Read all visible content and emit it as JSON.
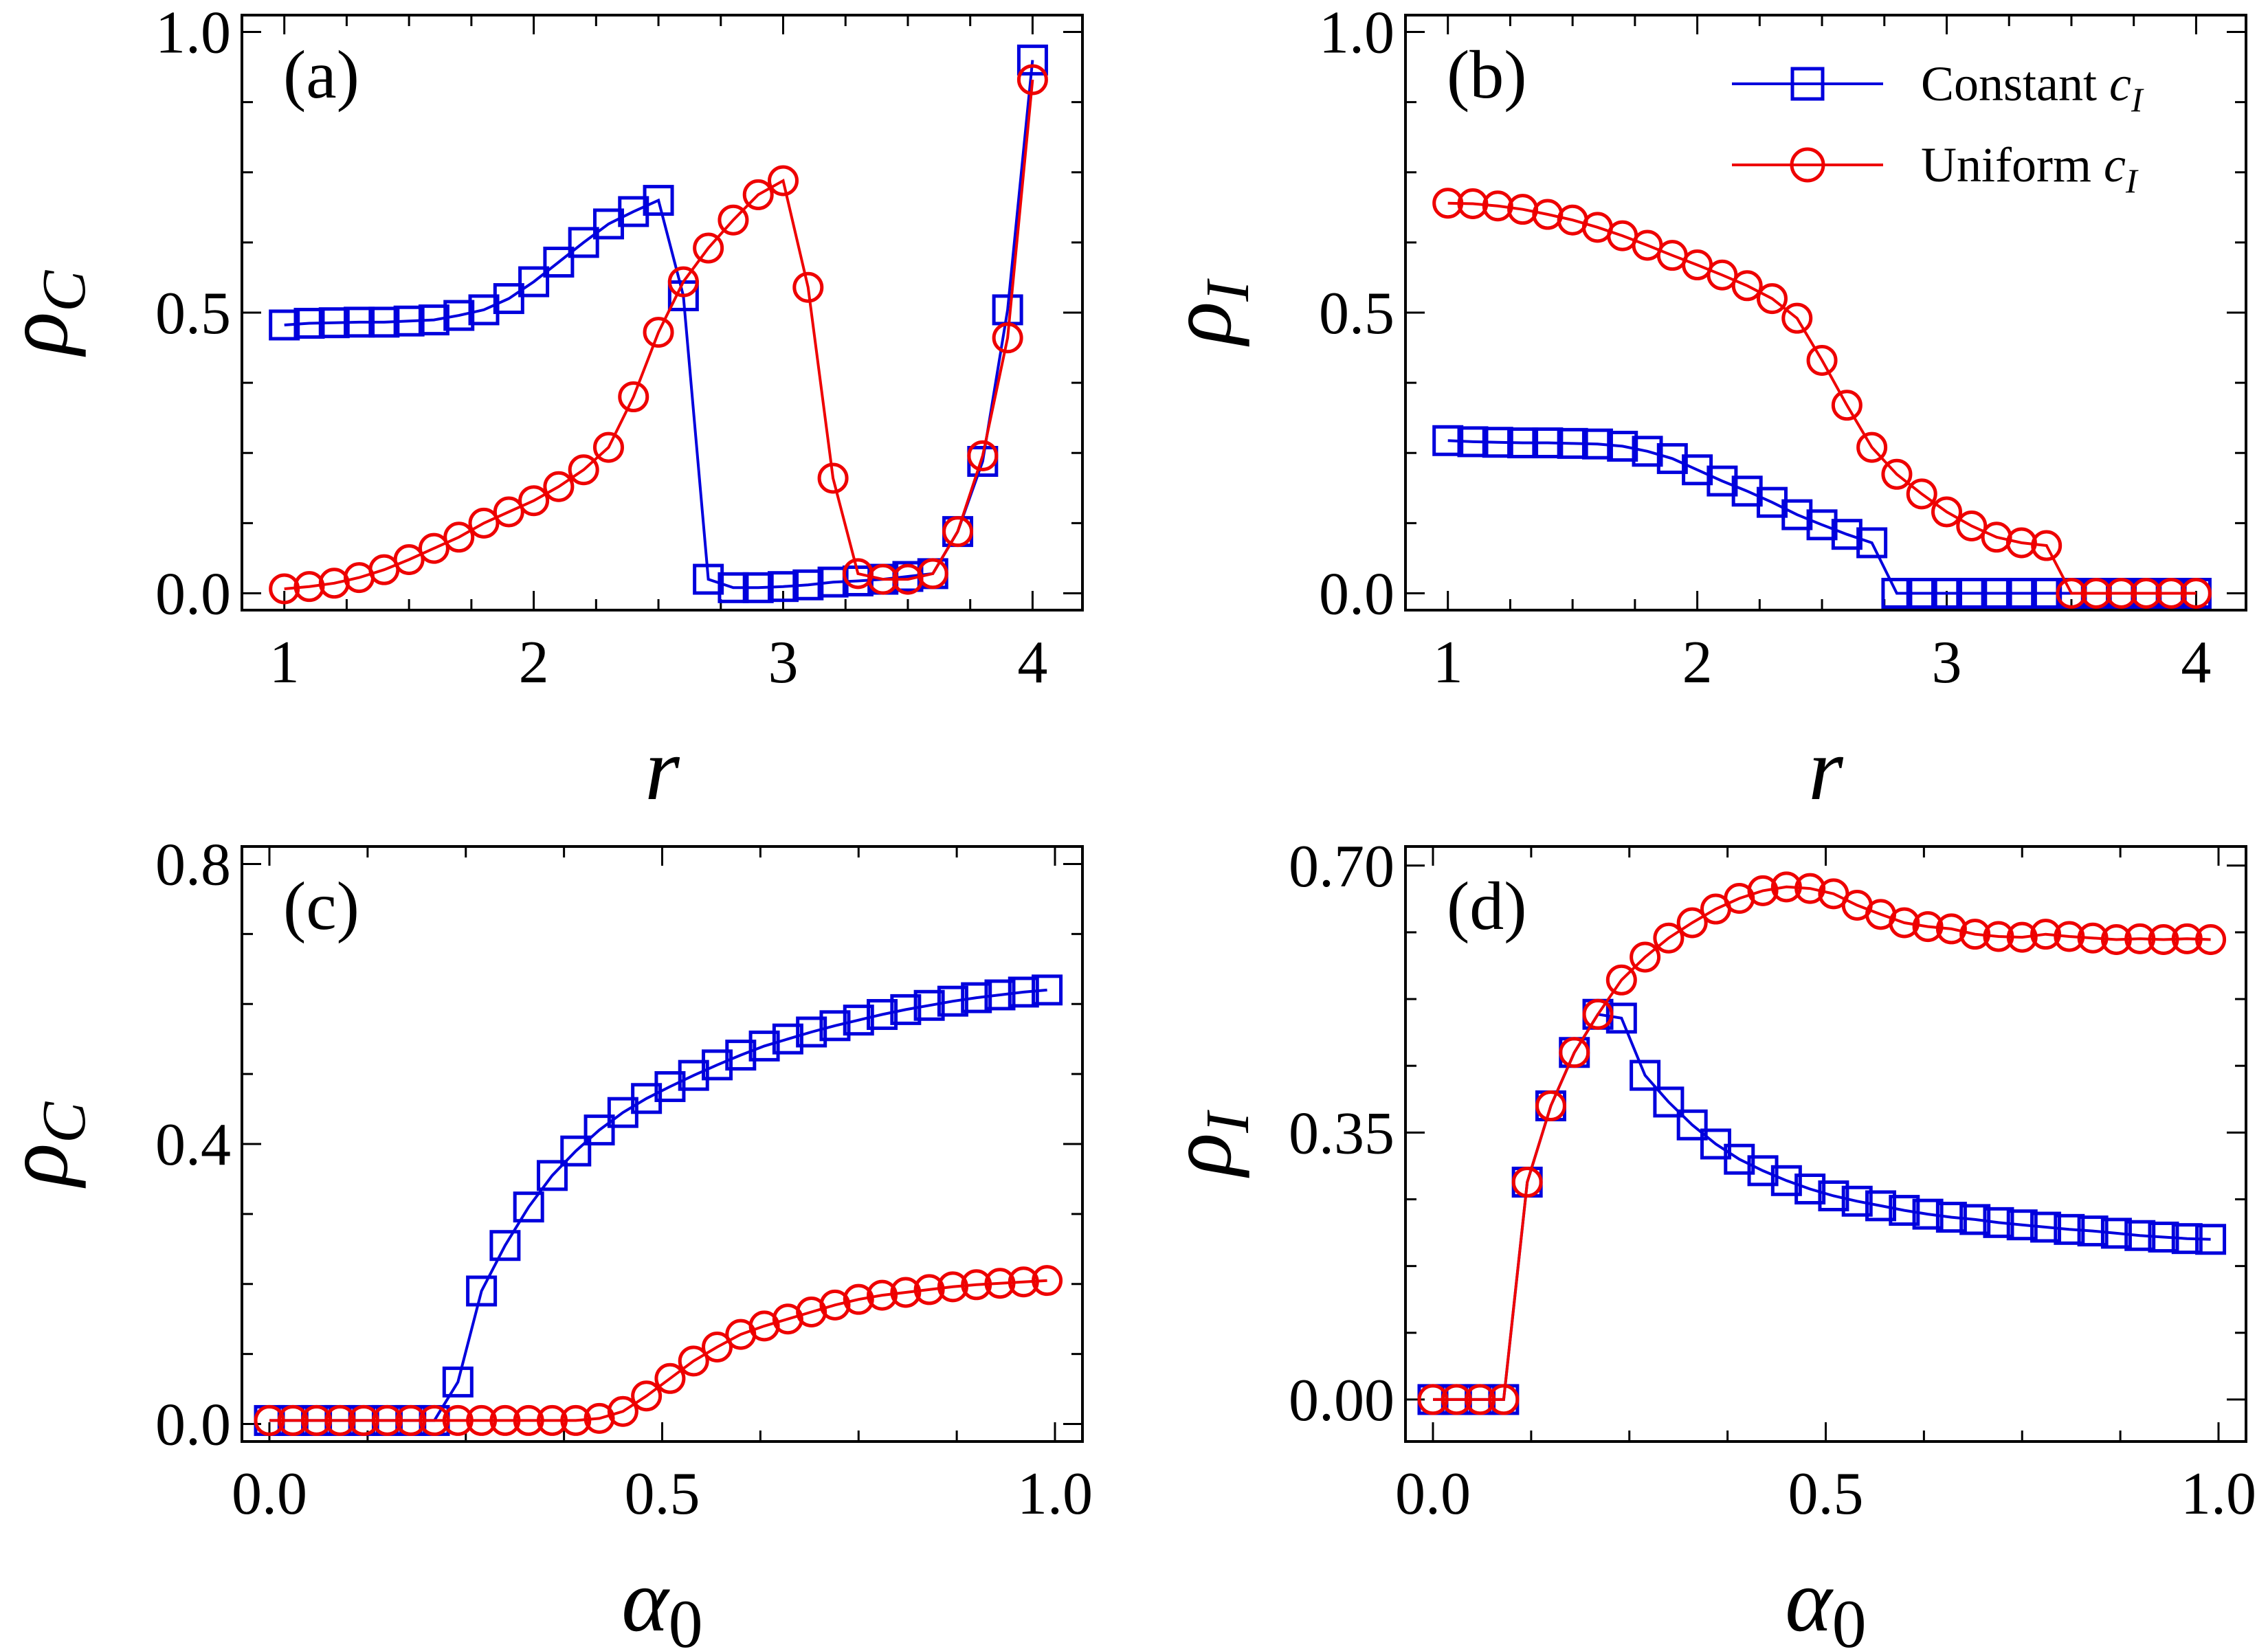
{
  "colors": {
    "constant": "#0000dd",
    "uniform": "#ee0000",
    "axis": "#000000"
  },
  "legend": {
    "constant": {
      "base": "Constant ",
      "sym": "c",
      "sub": "I"
    },
    "uniform": {
      "base": "Uniform ",
      "sym": "c",
      "sub": "I"
    }
  },
  "chart_data": [
    {
      "type": "line",
      "panel_label": "(a)",
      "xlabel": {
        "base": "r",
        "sub": ""
      },
      "ylabel": {
        "base": "ρ",
        "sub": "C"
      },
      "xlim": [
        0.83,
        4.2
      ],
      "ylim": [
        -0.03,
        1.03
      ],
      "xticks": [
        1,
        2,
        3,
        4
      ],
      "xticklabels": [
        "1",
        "2",
        "3",
        "4"
      ],
      "yticks": [
        0.0,
        0.5,
        1.0
      ],
      "yticklabels": [
        "0.0",
        "0.5",
        "1.0"
      ],
      "series": [
        {
          "name": "Constant cI",
          "marker": "square",
          "x": [
            1.0,
            1.1,
            1.2,
            1.3,
            1.4,
            1.5,
            1.6,
            1.7,
            1.8,
            1.9,
            2.0,
            2.1,
            2.2,
            2.3,
            2.4,
            2.5,
            2.6,
            2.7,
            2.8,
            2.9,
            3.0,
            3.1,
            3.2,
            3.3,
            3.4,
            3.5,
            3.6,
            3.7,
            3.8,
            3.9,
            4.0
          ],
          "y": [
            0.478,
            0.481,
            0.482,
            0.483,
            0.483,
            0.485,
            0.487,
            0.495,
            0.505,
            0.525,
            0.555,
            0.59,
            0.625,
            0.658,
            0.68,
            0.7,
            0.53,
            0.025,
            0.01,
            0.01,
            0.012,
            0.015,
            0.02,
            0.022,
            0.025,
            0.03,
            0.035,
            0.11,
            0.235,
            0.505,
            0.95
          ]
        },
        {
          "name": "Uniform cI",
          "marker": "circle",
          "x": [
            1.0,
            1.1,
            1.2,
            1.3,
            1.4,
            1.5,
            1.6,
            1.7,
            1.8,
            1.9,
            2.0,
            2.1,
            2.2,
            2.3,
            2.4,
            2.5,
            2.6,
            2.7,
            2.8,
            2.9,
            3.0,
            3.1,
            3.2,
            3.3,
            3.4,
            3.5,
            3.6,
            3.7,
            3.8,
            3.9,
            4.0
          ],
          "y": [
            0.008,
            0.012,
            0.018,
            0.028,
            0.042,
            0.06,
            0.08,
            0.1,
            0.125,
            0.145,
            0.165,
            0.19,
            0.22,
            0.26,
            0.35,
            0.465,
            0.555,
            0.615,
            0.665,
            0.71,
            0.735,
            0.545,
            0.205,
            0.035,
            0.025,
            0.025,
            0.035,
            0.11,
            0.245,
            0.455,
            0.915
          ]
        }
      ]
    },
    {
      "type": "line",
      "panel_label": "(b)",
      "xlabel": {
        "base": "r",
        "sub": ""
      },
      "ylabel": {
        "base": "ρ",
        "sub": "I"
      },
      "xlim": [
        0.83,
        4.2
      ],
      "ylim": [
        -0.03,
        1.03
      ],
      "xticks": [
        1,
        2,
        3,
        4
      ],
      "xticklabels": [
        "1",
        "2",
        "3",
        "4"
      ],
      "yticks": [
        0.0,
        0.5,
        1.0
      ],
      "yticklabels": [
        "0.0",
        "0.5",
        "1.0"
      ],
      "series": [
        {
          "name": "Constant cI",
          "marker": "square",
          "x": [
            1.0,
            1.1,
            1.2,
            1.3,
            1.4,
            1.5,
            1.6,
            1.7,
            1.8,
            1.9,
            2.0,
            2.1,
            2.2,
            2.3,
            2.4,
            2.5,
            2.6,
            2.7,
            2.8,
            2.9,
            3.0,
            3.1,
            3.2,
            3.3,
            3.4,
            3.5,
            3.6,
            3.7,
            3.8,
            3.9,
            4.0
          ],
          "y": [
            0.272,
            0.27,
            0.269,
            0.268,
            0.268,
            0.267,
            0.266,
            0.262,
            0.253,
            0.24,
            0.22,
            0.2,
            0.182,
            0.162,
            0.14,
            0.122,
            0.105,
            0.09,
            0.0,
            0.0,
            0.0,
            0.0,
            0.0,
            0.0,
            0.0,
            0.0,
            0.0,
            0.0,
            0.0,
            0.0,
            0.0
          ]
        },
        {
          "name": "Uniform cI",
          "marker": "circle",
          "x": [
            1.0,
            1.1,
            1.2,
            1.3,
            1.4,
            1.5,
            1.6,
            1.7,
            1.8,
            1.9,
            2.0,
            2.1,
            2.2,
            2.3,
            2.4,
            2.5,
            2.6,
            2.7,
            2.8,
            2.9,
            3.0,
            3.1,
            3.2,
            3.3,
            3.4,
            3.5,
            3.6,
            3.7,
            3.8,
            3.9,
            4.0
          ],
          "y": [
            0.695,
            0.694,
            0.69,
            0.684,
            0.675,
            0.665,
            0.652,
            0.637,
            0.62,
            0.602,
            0.585,
            0.567,
            0.548,
            0.525,
            0.49,
            0.415,
            0.335,
            0.26,
            0.212,
            0.177,
            0.145,
            0.12,
            0.1,
            0.09,
            0.085,
            0.0,
            0.0,
            0.0,
            0.0,
            0.0,
            0.0
          ]
        }
      ]
    },
    {
      "type": "line",
      "panel_label": "(c)",
      "xlabel": {
        "base": "α",
        "sub": "0"
      },
      "ylabel": {
        "base": "ρ",
        "sub": "C"
      },
      "xlim": [
        -0.035,
        1.035
      ],
      "ylim": [
        -0.025,
        0.825
      ],
      "xticks": [
        0.0,
        0.5,
        1.0
      ],
      "xticklabels": [
        "0.0",
        "0.5",
        "1.0"
      ],
      "yticks": [
        0.0,
        0.4,
        0.8
      ],
      "yticklabels": [
        "0.0",
        "0.4",
        "0.8"
      ],
      "series": [
        {
          "name": "Constant cI",
          "marker": "square",
          "x": [
            0.0,
            0.03,
            0.06,
            0.09,
            0.12,
            0.15,
            0.18,
            0.21,
            0.24,
            0.27,
            0.3,
            0.33,
            0.36,
            0.39,
            0.42,
            0.45,
            0.48,
            0.51,
            0.54,
            0.57,
            0.6,
            0.63,
            0.66,
            0.69,
            0.72,
            0.75,
            0.78,
            0.81,
            0.84,
            0.87,
            0.9,
            0.93,
            0.96,
            0.99
          ],
          "y": [
            0.005,
            0.005,
            0.005,
            0.005,
            0.005,
            0.005,
            0.005,
            0.005,
            0.06,
            0.19,
            0.255,
            0.31,
            0.355,
            0.39,
            0.42,
            0.445,
            0.465,
            0.482,
            0.498,
            0.513,
            0.527,
            0.54,
            0.55,
            0.56,
            0.569,
            0.577,
            0.585,
            0.592,
            0.598,
            0.604,
            0.609,
            0.613,
            0.617,
            0.62
          ]
        },
        {
          "name": "Uniform cI",
          "marker": "circle",
          "x": [
            0.0,
            0.03,
            0.06,
            0.09,
            0.12,
            0.15,
            0.18,
            0.21,
            0.24,
            0.27,
            0.3,
            0.33,
            0.36,
            0.39,
            0.42,
            0.45,
            0.48,
            0.51,
            0.54,
            0.57,
            0.6,
            0.63,
            0.66,
            0.69,
            0.72,
            0.75,
            0.78,
            0.81,
            0.84,
            0.87,
            0.9,
            0.93,
            0.96,
            0.99
          ],
          "y": [
            0.005,
            0.005,
            0.005,
            0.005,
            0.005,
            0.005,
            0.005,
            0.005,
            0.005,
            0.005,
            0.005,
            0.005,
            0.005,
            0.005,
            0.008,
            0.018,
            0.04,
            0.065,
            0.09,
            0.11,
            0.128,
            0.14,
            0.15,
            0.16,
            0.17,
            0.178,
            0.184,
            0.188,
            0.192,
            0.196,
            0.199,
            0.201,
            0.203,
            0.205
          ]
        }
      ]
    },
    {
      "type": "line",
      "panel_label": "(d)",
      "xlabel": {
        "base": "α",
        "sub": "0"
      },
      "ylabel": {
        "base": "ρ",
        "sub": "I"
      },
      "xlim": [
        -0.035,
        1.035
      ],
      "ylim": [
        -0.055,
        0.725
      ],
      "xticks": [
        0.0,
        0.5,
        1.0
      ],
      "xticklabels": [
        "0.0",
        "0.5",
        "1.0"
      ],
      "yticks": [
        0.0,
        0.35,
        0.7
      ],
      "yticklabels": [
        "0.00",
        "0.35",
        "0.70"
      ],
      "series": [
        {
          "name": "Constant cI",
          "marker": "square",
          "x": [
            0.0,
            0.03,
            0.06,
            0.09,
            0.12,
            0.15,
            0.18,
            0.21,
            0.24,
            0.27,
            0.3,
            0.33,
            0.36,
            0.39,
            0.42,
            0.45,
            0.48,
            0.51,
            0.54,
            0.57,
            0.6,
            0.63,
            0.66,
            0.69,
            0.72,
            0.75,
            0.78,
            0.81,
            0.84,
            0.87,
            0.9,
            0.93,
            0.96,
            0.99
          ],
          "y": [
            0.0,
            0.0,
            0.0,
            0.0,
            0.285,
            0.385,
            0.455,
            0.505,
            0.5,
            0.425,
            0.39,
            0.36,
            0.335,
            0.315,
            0.3,
            0.287,
            0.276,
            0.267,
            0.26,
            0.254,
            0.248,
            0.243,
            0.239,
            0.236,
            0.232,
            0.229,
            0.226,
            0.223,
            0.221,
            0.218,
            0.215,
            0.213,
            0.211,
            0.21
          ]
        },
        {
          "name": "Uniform cI",
          "marker": "circle",
          "x": [
            0.0,
            0.03,
            0.06,
            0.09,
            0.12,
            0.15,
            0.18,
            0.21,
            0.24,
            0.27,
            0.3,
            0.33,
            0.36,
            0.39,
            0.42,
            0.45,
            0.48,
            0.51,
            0.54,
            0.57,
            0.6,
            0.63,
            0.66,
            0.69,
            0.72,
            0.75,
            0.78,
            0.81,
            0.84,
            0.87,
            0.9,
            0.93,
            0.96,
            0.99
          ],
          "y": [
            0.0,
            0.0,
            0.0,
            0.0,
            0.285,
            0.385,
            0.455,
            0.505,
            0.55,
            0.58,
            0.605,
            0.625,
            0.643,
            0.657,
            0.667,
            0.672,
            0.67,
            0.663,
            0.648,
            0.636,
            0.625,
            0.62,
            0.617,
            0.61,
            0.607,
            0.606,
            0.61,
            0.607,
            0.605,
            0.603,
            0.604,
            0.603,
            0.604,
            0.603
          ]
        }
      ]
    }
  ]
}
